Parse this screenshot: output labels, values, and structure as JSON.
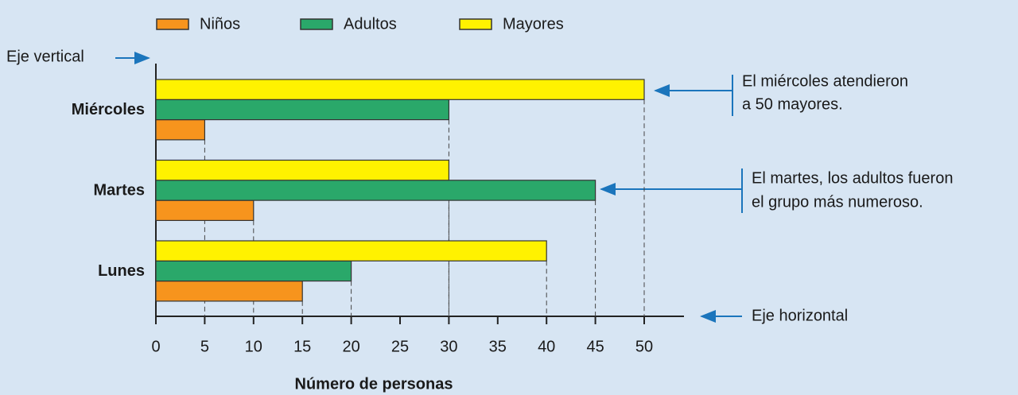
{
  "chart_data": {
    "type": "hbar",
    "categories": [
      "Lunes",
      "Martes",
      "Miércoles"
    ],
    "series": [
      {
        "name": "Niños",
        "color": "#f7941d",
        "values": [
          15,
          10,
          5
        ]
      },
      {
        "name": "Adultos",
        "color": "#2aa86a",
        "values": [
          20,
          45,
          30
        ]
      },
      {
        "name": "Mayores",
        "color": "#fff200",
        "values": [
          40,
          30,
          50
        ]
      }
    ],
    "xlim": [
      0,
      50
    ],
    "xticks": [
      0,
      5,
      10,
      15,
      20,
      25,
      30,
      35,
      40,
      45,
      50
    ],
    "xlabel": "Número de personas",
    "guide_lines": true,
    "legend": "top",
    "axis_notes": {
      "vertical": "Eje vertical",
      "horizontal": "Eje horizontal"
    },
    "annotations": [
      {
        "lines": [
          "El miércoles atendieron",
          "a 50 mayores."
        ]
      },
      {
        "lines": [
          "El martes, los adultos fueron",
          "el grupo más numeroso."
        ]
      }
    ]
  }
}
